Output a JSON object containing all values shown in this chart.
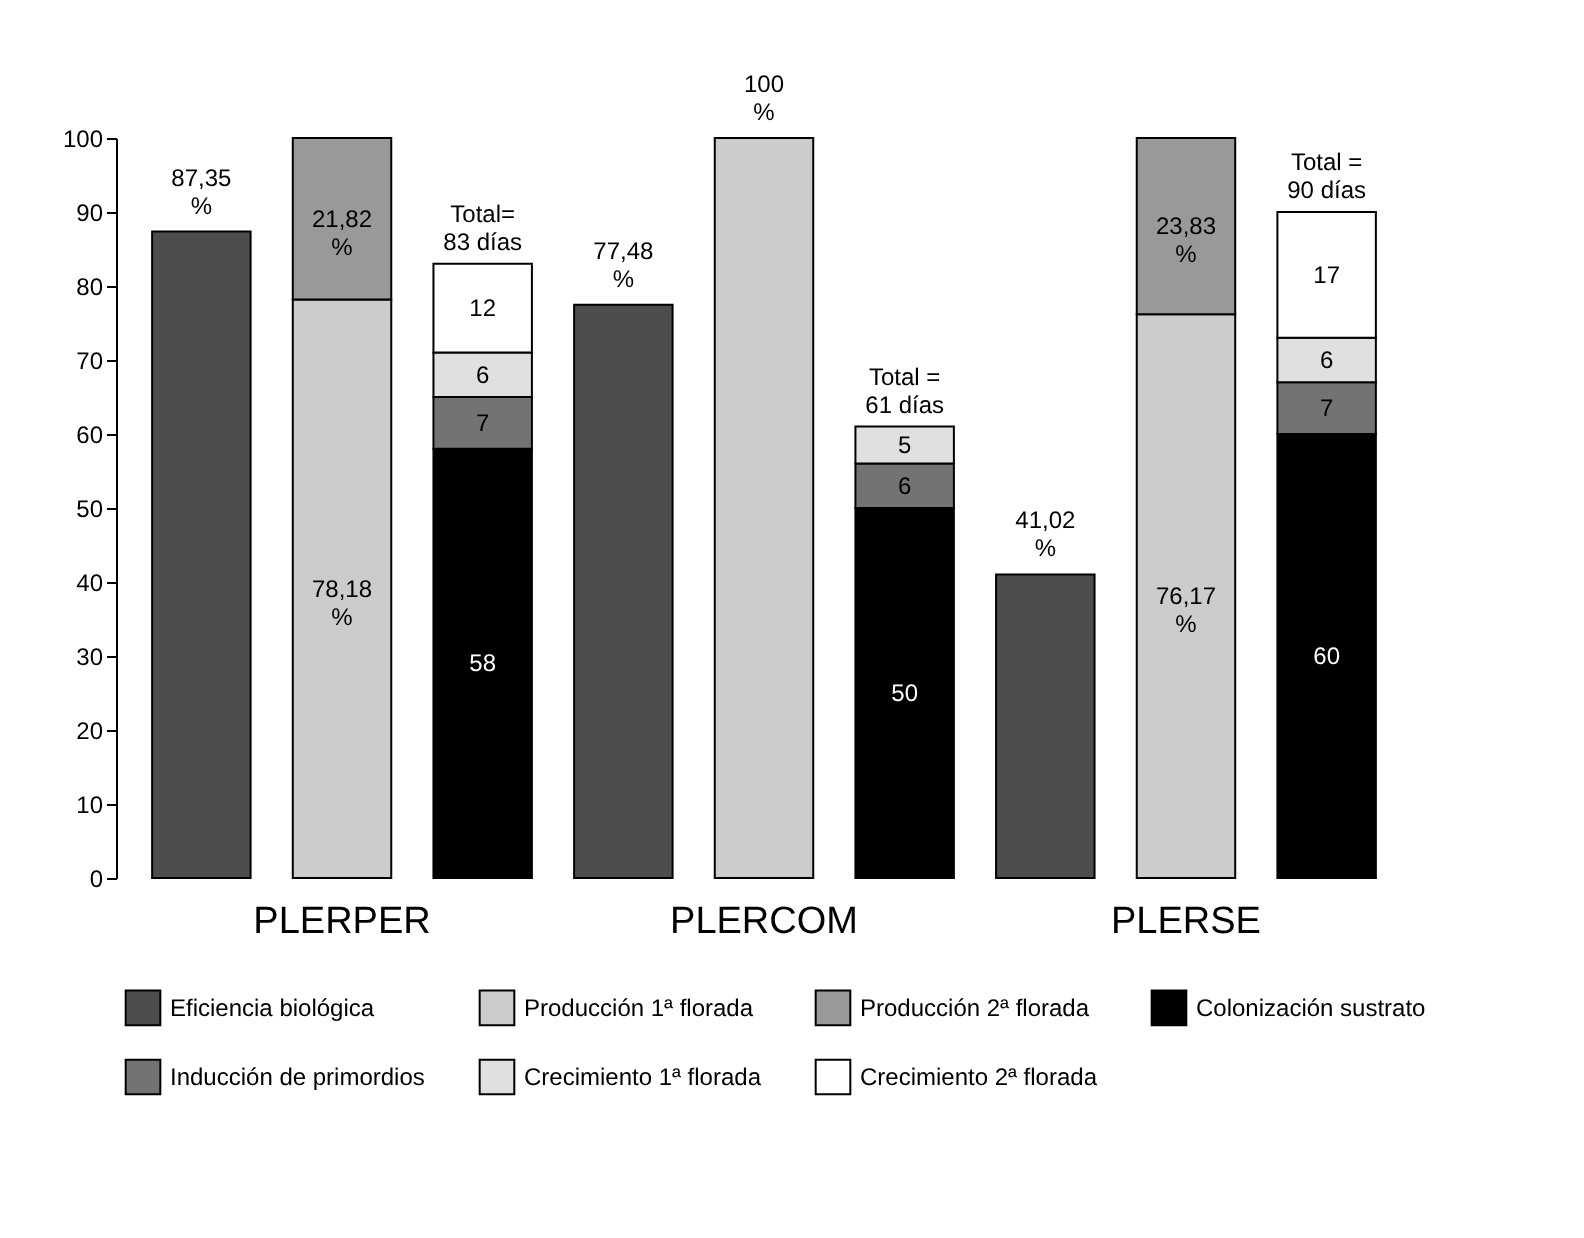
{
  "chart_data": {
    "type": "bar",
    "stacked": true,
    "categories": [
      null,
      "PLERPER",
      null,
      null,
      "PLERCOM",
      null,
      null,
      "PLERSE",
      null
    ],
    "series": [
      {
        "name": "Eficiencia biológica",
        "color": "#4d4d4d",
        "values": [
          87.35,
          null,
          null,
          77.48,
          null,
          null,
          41.02,
          null,
          null
        ],
        "value_labels": [
          "87,35 %",
          null,
          null,
          "77,48 %",
          null,
          null,
          "41,02 %",
          null,
          null
        ]
      },
      {
        "name": "Producción 1ª florada",
        "color": "#cccccc",
        "values": [
          null,
          78.18,
          null,
          null,
          100,
          null,
          null,
          76.17,
          null
        ],
        "value_labels": [
          null,
          "78,18 %",
          null,
          null,
          "100 %",
          null,
          null,
          "76,17 %",
          null
        ]
      },
      {
        "name": "Producción 2ª florada",
        "color": "#999999",
        "values": [
          null,
          21.82,
          null,
          null,
          null,
          null,
          null,
          23.83,
          null
        ],
        "value_labels": [
          null,
          "21,82 %",
          null,
          null,
          null,
          null,
          null,
          "23,83 %",
          null
        ]
      },
      {
        "name": "Colonización sustrato",
        "color": "#000000",
        "values": [
          null,
          null,
          58,
          null,
          null,
          50,
          null,
          null,
          60
        ],
        "value_labels": [
          null,
          null,
          "58",
          null,
          null,
          "50",
          null,
          null,
          "60"
        ]
      },
      {
        "name": "Inducción de primordios",
        "color": "#737373",
        "values": [
          null,
          null,
          7,
          null,
          null,
          6,
          null,
          null,
          7
        ],
        "value_labels": [
          null,
          null,
          "7",
          null,
          null,
          "6",
          null,
          null,
          "7"
        ]
      },
      {
        "name": "Crecimiento 1ª florada",
        "color": "#e0e0e0",
        "values": [
          null,
          null,
          6,
          null,
          null,
          5,
          null,
          null,
          6
        ],
        "value_labels": [
          null,
          null,
          "6",
          null,
          null,
          "5",
          null,
          null,
          "6"
        ]
      },
      {
        "name": "Crecimiento 2ª florada",
        "color": "#ffffff",
        "values": [
          null,
          null,
          12,
          null,
          null,
          null,
          null,
          null,
          17
        ],
        "value_labels": [
          null,
          null,
          "12",
          null,
          null,
          null,
          null,
          null,
          "17"
        ]
      }
    ],
    "totals": [
      null,
      null,
      "Total= 83 días",
      null,
      null,
      "Total = 61 días",
      null,
      null,
      "Total = 90 días"
    ],
    "ylim": [
      0,
      100
    ],
    "yticks": [
      0,
      10,
      20,
      30,
      40,
      50,
      60,
      70,
      80,
      90,
      100
    ],
    "grid": false,
    "legend": "bottom"
  }
}
